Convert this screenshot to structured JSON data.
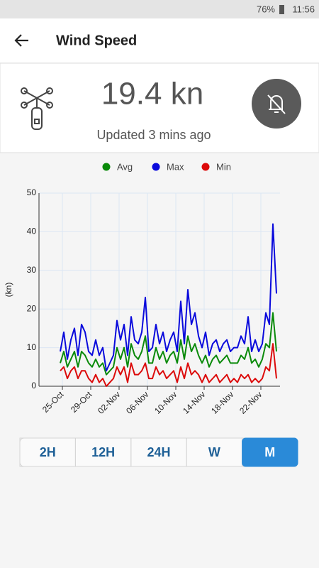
{
  "status": {
    "battery": "76%",
    "time": "11:56"
  },
  "header": {
    "title": "Wind Speed"
  },
  "reading": {
    "value": "19.4 kn",
    "updated": "Updated 3 mins ago"
  },
  "chart_data": {
    "type": "line",
    "ylabel": "(kn)",
    "x": [
      -0.3,
      0.2,
      0.7,
      1.2,
      1.7,
      2.2,
      2.7,
      3.2,
      3.7,
      4.2,
      4.7,
      5.2,
      5.7,
      6.2,
      6.7,
      7.2,
      7.7,
      8.2,
      8.7,
      9.2,
      9.7,
      10.2,
      10.7,
      11.2,
      11.7,
      12.2,
      12.7,
      13.2,
      13.7,
      14.2,
      14.7,
      15.2,
      15.7,
      16.2,
      16.7,
      17.2,
      17.7,
      18.2,
      18.7,
      19.2,
      19.7,
      20.2,
      20.7,
      21.2,
      21.7,
      22.2,
      22.7,
      23.2,
      23.7,
      24.2,
      24.7,
      25.2,
      25.7,
      26.2,
      26.7,
      27.2,
      27.7,
      28.2,
      28.7,
      29.2,
      29.7,
      30.2
    ],
    "series": [
      {
        "name": "Avg",
        "color": "#0a8a0a",
        "values": [
          6,
          9,
          5,
          7,
          9,
          5,
          9,
          8,
          6,
          5,
          7,
          5,
          6,
          3,
          4,
          5,
          10,
          7,
          10,
          5,
          11,
          8,
          7,
          9,
          13,
          6,
          6,
          10,
          7,
          9,
          6,
          8,
          9,
          6,
          12,
          7,
          13,
          9,
          11,
          8,
          6,
          8,
          5,
          7,
          8,
          6,
          7,
          8,
          6,
          6,
          6,
          8,
          7,
          10,
          6,
          7,
          5,
          7,
          11,
          10,
          19,
          9
        ]
      },
      {
        "name": "Max",
        "color": "#0a0adc",
        "values": [
          9,
          14,
          7,
          12,
          15,
          8,
          16,
          14,
          9,
          8,
          12,
          8,
          10,
          4,
          6,
          8,
          17,
          12,
          16,
          8,
          18,
          12,
          11,
          14,
          23,
          9,
          10,
          16,
          11,
          14,
          9,
          12,
          14,
          9,
          22,
          11,
          25,
          16,
          19,
          13,
          10,
          14,
          8,
          11,
          12,
          9,
          11,
          12,
          9,
          10,
          10,
          13,
          11,
          18,
          9,
          12,
          9,
          11,
          19,
          16,
          42,
          24
        ]
      },
      {
        "name": "Min",
        "color": "#dc0a0a",
        "values": [
          4,
          5,
          2,
          4,
          5,
          2,
          4,
          4,
          2,
          1,
          3,
          1,
          2,
          0,
          1,
          2,
          5,
          3,
          5,
          1,
          6,
          3,
          3,
          4,
          6,
          2,
          2,
          5,
          3,
          4,
          2,
          3,
          4,
          1,
          5,
          2,
          6,
          3,
          4,
          3,
          1,
          3,
          1,
          2,
          3,
          1,
          2,
          3,
          1,
          2,
          1,
          3,
          2,
          3,
          1,
          2,
          1,
          2,
          5,
          4,
          11,
          2
        ]
      }
    ],
    "xlim": [
      -3.3,
      30.7
    ],
    "xticks": [
      {
        "value": 0,
        "label": "25-Oct"
      },
      {
        "value": 4,
        "label": "29-Oct"
      },
      {
        "value": 8,
        "label": "02-Nov"
      },
      {
        "value": 12,
        "label": "06-Nov"
      },
      {
        "value": 16,
        "label": "10-Nov"
      },
      {
        "value": 20,
        "label": "14-Nov"
      },
      {
        "value": 24,
        "label": "18-Nov"
      },
      {
        "value": 28,
        "label": "22-Nov"
      }
    ],
    "ylim": [
      0,
      50
    ],
    "yticks": [
      0,
      10,
      20,
      30,
      40,
      50
    ],
    "grid": true,
    "legend": "top"
  },
  "buttons": [
    "2H",
    "12H",
    "24H",
    "W",
    "M"
  ],
  "selected": 4
}
